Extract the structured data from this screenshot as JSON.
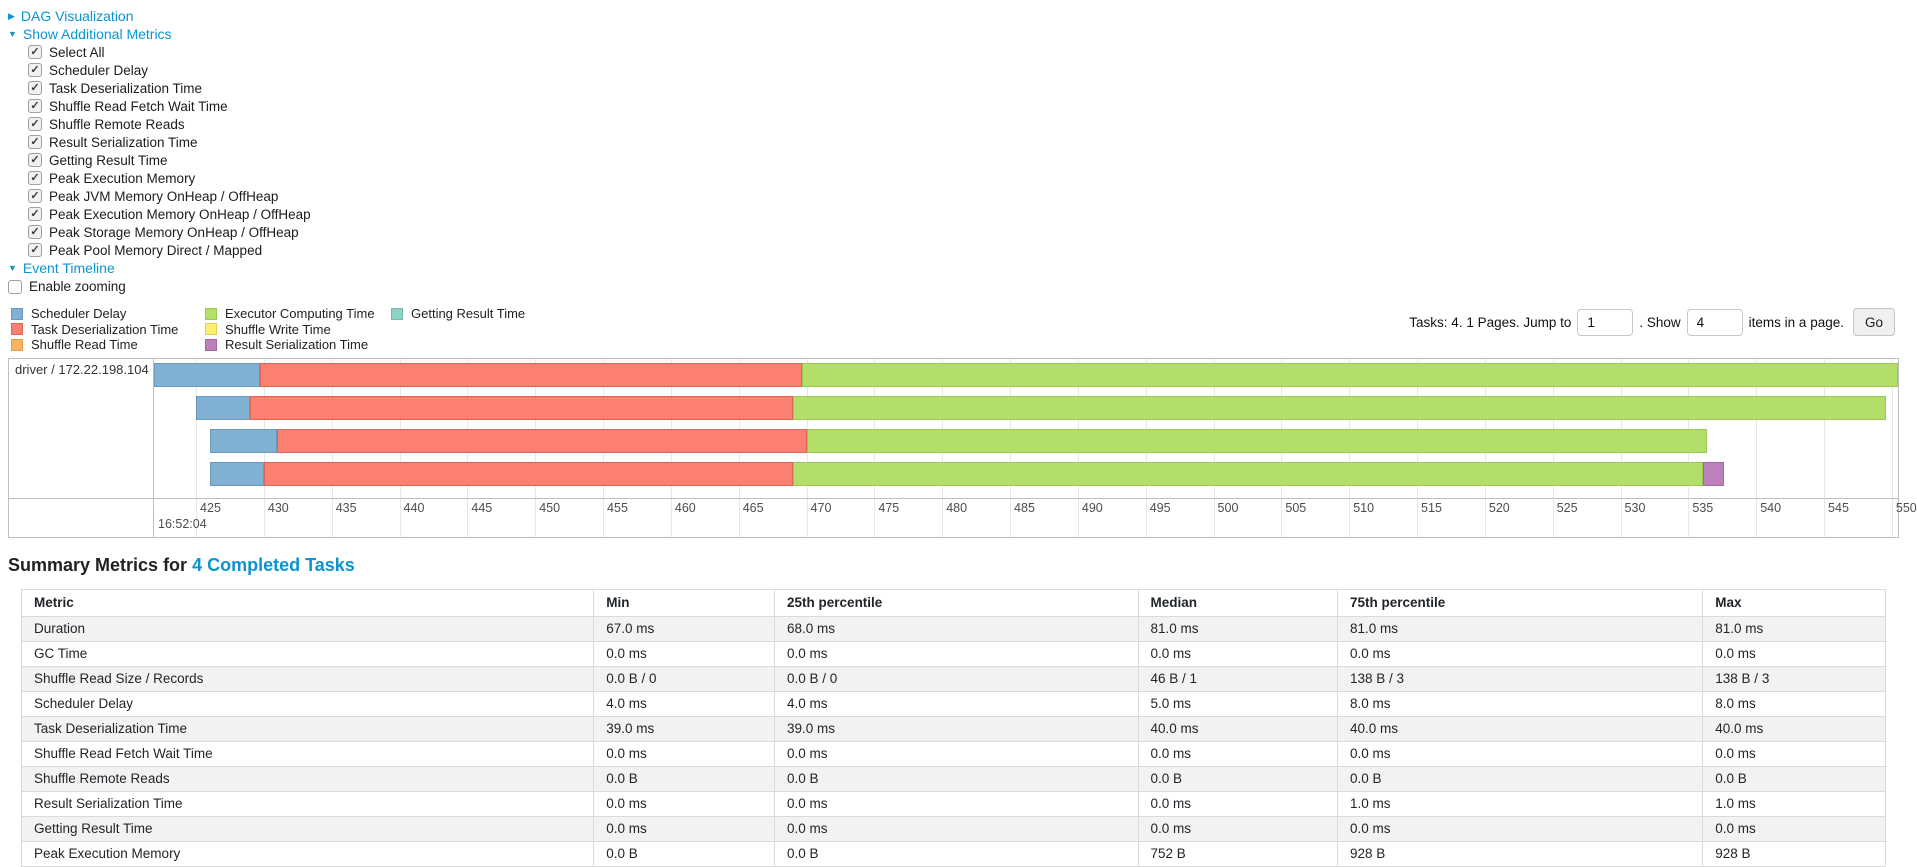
{
  "colors": {
    "link": "#0b94d1"
  },
  "panels": {
    "dag_label": "DAG Visualization",
    "metrics_label": "Show Additional Metrics",
    "timeline_label": "Event Timeline",
    "enable_zooming": {
      "label": "Enable zooming",
      "checked": false
    },
    "metric_checkboxes": [
      {
        "label": "Select All",
        "checked": true
      },
      {
        "label": "Scheduler Delay",
        "checked": true
      },
      {
        "label": "Task Deserialization Time",
        "checked": true
      },
      {
        "label": "Shuffle Read Fetch Wait Time",
        "checked": true
      },
      {
        "label": "Shuffle Remote Reads",
        "checked": true
      },
      {
        "label": "Result Serialization Time",
        "checked": true
      },
      {
        "label": "Getting Result Time",
        "checked": true
      },
      {
        "label": "Peak Execution Memory",
        "checked": true
      },
      {
        "label": "Peak JVM Memory OnHeap / OffHeap",
        "checked": true
      },
      {
        "label": "Peak Execution Memory OnHeap / OffHeap",
        "checked": true
      },
      {
        "label": "Peak Storage Memory OnHeap / OffHeap",
        "checked": true
      },
      {
        "label": "Peak Pool Memory Direct / Mapped",
        "checked": true
      }
    ]
  },
  "pagination": {
    "prefix": "Tasks: 4. 1 Pages. Jump to",
    "page_value": "1",
    "show_label": ". Show",
    "size_value": "4",
    "suffix": "items in a page.",
    "go_label": "Go"
  },
  "legend": {
    "items": [
      {
        "key": "scheduler-delay",
        "label": "Scheduler Delay",
        "fill": "#80B1D3",
        "border": "#6A99BC"
      },
      {
        "key": "task-deserialization-time",
        "label": "Task Deserialization Time",
        "fill": "#FB8072",
        "border": "#DC6558"
      },
      {
        "key": "shuffle-read-time",
        "label": "Shuffle Read Time",
        "fill": "#FDB462",
        "border": "#E09A48"
      },
      {
        "key": "executor-computing-time",
        "label": "Executor Computing Time",
        "fill": "#B3DE69",
        "border": "#9CC94F"
      },
      {
        "key": "shuffle-write-time",
        "label": "Shuffle Write Time",
        "fill": "#FFED6F",
        "border": "#E0D055"
      },
      {
        "key": "result-serialization-time",
        "label": "Result Serialization Time",
        "fill": "#BC80BD",
        "border": "#A267A3"
      },
      {
        "key": "getting-result-time",
        "label": "Getting Result Time",
        "fill": "#8DD3C7",
        "border": "#74B9AC"
      }
    ]
  },
  "chart_data": {
    "type": "timeline",
    "group_label": "driver / 172.22.198.104",
    "axis": {
      "min": 421.9,
      "max": 550.45,
      "unit": "ms within second shown as major label",
      "major_label": "16:52:04",
      "tick_labels": [
        "425",
        "430",
        "435",
        "440",
        "445",
        "450",
        "455",
        "460",
        "465",
        "470",
        "475",
        "480",
        "485",
        "490",
        "495",
        "500",
        "505",
        "510",
        "515",
        "520",
        "525",
        "530",
        "535",
        "540",
        "545",
        "550"
      ]
    },
    "tasks": [
      {
        "segments": [
          {
            "key": "scheduler-delay",
            "start": 421.9,
            "end": 429.7
          },
          {
            "key": "task-deserialization-time",
            "start": 429.7,
            "end": 469.7
          },
          {
            "key": "executor-computing-time",
            "start": 469.7,
            "end": 550.45
          }
        ]
      },
      {
        "segments": [
          {
            "key": "scheduler-delay",
            "start": 425.0,
            "end": 429.0
          },
          {
            "key": "task-deserialization-time",
            "start": 429.0,
            "end": 469.0
          },
          {
            "key": "executor-computing-time",
            "start": 469.0,
            "end": 549.6
          }
        ]
      },
      {
        "segments": [
          {
            "key": "scheduler-delay",
            "start": 426.0,
            "end": 431.0
          },
          {
            "key": "task-deserialization-time",
            "start": 431.0,
            "end": 470.0
          },
          {
            "key": "executor-computing-time",
            "start": 470.0,
            "end": 536.4
          }
        ]
      },
      {
        "segments": [
          {
            "key": "scheduler-delay",
            "start": 426.0,
            "end": 430.0
          },
          {
            "key": "task-deserialization-time",
            "start": 430.0,
            "end": 469.0
          },
          {
            "key": "executor-computing-time",
            "start": 469.0,
            "end": 536.1
          },
          {
            "key": "result-serialization-time",
            "start": 536.1,
            "end": 537.6
          }
        ]
      }
    ]
  },
  "summary": {
    "title_prefix": "Summary Metrics for ",
    "title_link": "4 Completed Tasks",
    "table": {
      "headers": [
        "Metric",
        "Min",
        "25th percentile",
        "Median",
        "75th percentile",
        "Max"
      ],
      "rows": [
        [
          "Duration",
          "67.0 ms",
          "68.0 ms",
          "81.0 ms",
          "81.0 ms",
          "81.0 ms"
        ],
        [
          "GC Time",
          "0.0 ms",
          "0.0 ms",
          "0.0 ms",
          "0.0 ms",
          "0.0 ms"
        ],
        [
          "Shuffle Read Size / Records",
          "0.0 B / 0",
          "0.0 B / 0",
          "46 B / 1",
          "138 B / 3",
          "138 B / 3"
        ],
        [
          "Scheduler Delay",
          "4.0 ms",
          "4.0 ms",
          "5.0 ms",
          "8.0 ms",
          "8.0 ms"
        ],
        [
          "Task Deserialization Time",
          "39.0 ms",
          "39.0 ms",
          "40.0 ms",
          "40.0 ms",
          "40.0 ms"
        ],
        [
          "Shuffle Read Fetch Wait Time",
          "0.0 ms",
          "0.0 ms",
          "0.0 ms",
          "0.0 ms",
          "0.0 ms"
        ],
        [
          "Shuffle Remote Reads",
          "0.0 B",
          "0.0 B",
          "0.0 B",
          "0.0 B",
          "0.0 B"
        ],
        [
          "Result Serialization Time",
          "0.0 ms",
          "0.0 ms",
          "0.0 ms",
          "1.0 ms",
          "1.0 ms"
        ],
        [
          "Getting Result Time",
          "0.0 ms",
          "0.0 ms",
          "0.0 ms",
          "0.0 ms",
          "0.0 ms"
        ],
        [
          "Peak Execution Memory",
          "0.0 B",
          "0.0 B",
          "752 B",
          "928 B",
          "928 B"
        ]
      ]
    }
  }
}
